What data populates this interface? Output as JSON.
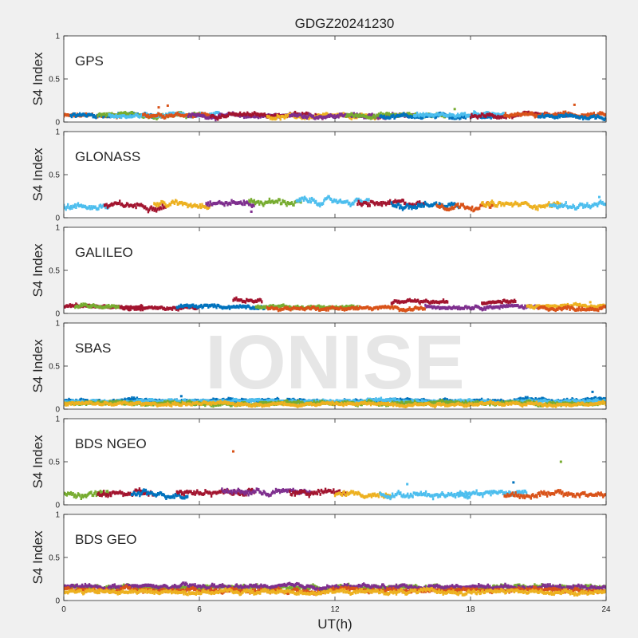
{
  "figure": {
    "title": "GDGZ20241230",
    "xlabel": "UT(h)",
    "watermark": "IONISE"
  },
  "chart_data": {
    "type": "scatter",
    "title": "GDGZ20241230",
    "xlabel": "UT(h)",
    "ylabel": "S4 Index",
    "xlim": [
      0,
      24
    ],
    "xticks": [
      0,
      6,
      12,
      18,
      24
    ],
    "ylim": [
      0,
      1
    ],
    "yticks": [
      0,
      0.5,
      1
    ],
    "ytick_labels": [
      "0",
      "0.5",
      "1"
    ],
    "grid": false,
    "colors": [
      "#0072BD",
      "#D95319",
      "#EDB120",
      "#7E2F8E",
      "#77AC30",
      "#4DBEEE",
      "#A2142F"
    ],
    "panels": [
      {
        "label": "GPS",
        "baseline": 0.07,
        "noise": 0.025,
        "segments": [
          {
            "x": [
              0,
              2.5
            ],
            "color": 1,
            "y": 0.07
          },
          {
            "x": [
              0.3,
              4.0
            ],
            "color": 0,
            "y": 0.08
          },
          {
            "x": [
              1.5,
              6.0
            ],
            "color": 4,
            "y": 0.08
          },
          {
            "x": [
              2.0,
              7.0
            ],
            "color": 5,
            "y": 0.07
          },
          {
            "x": [
              3.5,
              6.5
            ],
            "color": 1,
            "y": 0.09
          },
          {
            "x": [
              5.5,
              10.0
            ],
            "color": 3,
            "y": 0.07
          },
          {
            "x": [
              6.5,
              11.5
            ],
            "color": 6,
            "y": 0.08
          },
          {
            "x": [
              9.0,
              14.0
            ],
            "color": 2,
            "y": 0.06
          },
          {
            "x": [
              10.0,
              15.5
            ],
            "color": 3,
            "y": 0.07
          },
          {
            "x": [
              12.5,
              17.0
            ],
            "color": 4,
            "y": 0.08
          },
          {
            "x": [
              14.0,
              19.0
            ],
            "color": 0,
            "y": 0.07
          },
          {
            "x": [
              15.5,
              19.5
            ],
            "color": 5,
            "y": 0.08
          },
          {
            "x": [
              18.0,
              22.5
            ],
            "color": 6,
            "y": 0.07
          },
          {
            "x": [
              19.5,
              24.0
            ],
            "color": 1,
            "y": 0.08
          },
          {
            "x": [
              21.0,
              24.0
            ],
            "color": 0,
            "y": 0.06
          }
        ],
        "spikes": [
          {
            "x": 4.2,
            "y": 0.17,
            "color": 1
          },
          {
            "x": 4.6,
            "y": 0.19,
            "color": 1
          },
          {
            "x": 17.3,
            "y": 0.15,
            "color": 4
          },
          {
            "x": 22.6,
            "y": 0.2,
            "color": 1
          }
        ]
      },
      {
        "label": "GLONASS",
        "baseline": 0.13,
        "noise": 0.035,
        "segments": [
          {
            "x": [
              0,
              2.0
            ],
            "color": 5,
            "y": 0.13
          },
          {
            "x": [
              1.8,
              4.5
            ],
            "color": 6,
            "y": 0.14
          },
          {
            "x": [
              4.0,
              6.5
            ],
            "color": 2,
            "y": 0.16
          },
          {
            "x": [
              6.3,
              8.5
            ],
            "color": 3,
            "y": 0.17
          },
          {
            "x": [
              8.2,
              10.5
            ],
            "color": 4,
            "y": 0.18
          },
          {
            "x": [
              10.3,
              13.5
            ],
            "color": 5,
            "y": 0.19
          },
          {
            "x": [
              13.0,
              16.0
            ],
            "color": 6,
            "y": 0.16
          },
          {
            "x": [
              14.5,
              17.5
            ],
            "color": 0,
            "y": 0.15
          },
          {
            "x": [
              16.5,
              19.0
            ],
            "color": 1,
            "y": 0.14
          },
          {
            "x": [
              18.5,
              22.0
            ],
            "color": 2,
            "y": 0.15
          },
          {
            "x": [
              21.5,
              24.0
            ],
            "color": 5,
            "y": 0.14
          }
        ],
        "spikes": [
          {
            "x": 8.3,
            "y": 0.07,
            "color": 3
          },
          {
            "x": 23.7,
            "y": 0.24,
            "color": 5
          }
        ]
      },
      {
        "label": "GALILEO",
        "baseline": 0.07,
        "noise": 0.02,
        "segments": [
          {
            "x": [
              0,
              3.5
            ],
            "color": 6,
            "y": 0.08
          },
          {
            "x": [
              0.5,
              2.5
            ],
            "color": 4,
            "y": 0.09
          },
          {
            "x": [
              2.5,
              6.0
            ],
            "color": 6,
            "y": 0.06
          },
          {
            "x": [
              5.0,
              9.0
            ],
            "color": 0,
            "y": 0.08
          },
          {
            "x": [
              7.5,
              8.8
            ],
            "color": 6,
            "y": 0.15
          },
          {
            "x": [
              8.5,
              13.0
            ],
            "color": 4,
            "y": 0.07
          },
          {
            "x": [
              9.0,
              16.0
            ],
            "color": 1,
            "y": 0.06
          },
          {
            "x": [
              14.5,
              17.0
            ],
            "color": 6,
            "y": 0.13
          },
          {
            "x": [
              16.0,
              21.0
            ],
            "color": 3,
            "y": 0.08
          },
          {
            "x": [
              18.5,
              20.0
            ],
            "color": 6,
            "y": 0.13
          },
          {
            "x": [
              20.5,
              24.0
            ],
            "color": 2,
            "y": 0.08
          },
          {
            "x": [
              21.0,
              24.0
            ],
            "color": 1,
            "y": 0.06
          }
        ],
        "spikes": [
          {
            "x": 23.3,
            "y": 0.13,
            "color": 2
          }
        ]
      },
      {
        "label": "SBAS",
        "baseline": 0.09,
        "noise": 0.02,
        "segments": [
          {
            "x": [
              0,
              24.0
            ],
            "color": 0,
            "y": 0.1
          },
          {
            "x": [
              0,
              24.0
            ],
            "color": 5,
            "y": 0.09
          },
          {
            "x": [
              0,
              24.0
            ],
            "color": 4,
            "y": 0.07
          },
          {
            "x": [
              0,
              24.0
            ],
            "color": 2,
            "y": 0.06
          }
        ],
        "spikes": [
          {
            "x": 23.4,
            "y": 0.2,
            "color": 0
          },
          {
            "x": 5.2,
            "y": 0.15,
            "color": 0
          }
        ]
      },
      {
        "label": "BDS NGEO",
        "baseline": 0.12,
        "noise": 0.035,
        "segments": [
          {
            "x": [
              0,
              2.0
            ],
            "color": 4,
            "y": 0.12
          },
          {
            "x": [
              1.5,
              4.0
            ],
            "color": 6,
            "y": 0.13
          },
          {
            "x": [
              3.0,
              5.5
            ],
            "color": 0,
            "y": 0.12
          },
          {
            "x": [
              5.0,
              8.5
            ],
            "color": 6,
            "y": 0.15
          },
          {
            "x": [
              7.0,
              11.0
            ],
            "color": 3,
            "y": 0.15
          },
          {
            "x": [
              10.0,
              12.5
            ],
            "color": 6,
            "y": 0.14
          },
          {
            "x": [
              12.0,
              14.5
            ],
            "color": 2,
            "y": 0.12
          },
          {
            "x": [
              14.0,
              18.0
            ],
            "color": 5,
            "y": 0.12
          },
          {
            "x": [
              17.5,
              20.5
            ],
            "color": 5,
            "y": 0.14
          },
          {
            "x": [
              19.5,
              24.0
            ],
            "color": 1,
            "y": 0.12
          }
        ],
        "spikes": [
          {
            "x": 7.5,
            "y": 0.62,
            "color": 1
          },
          {
            "x": 22.0,
            "y": 0.5,
            "color": 4
          },
          {
            "x": 15.2,
            "y": 0.24,
            "color": 5
          },
          {
            "x": 19.9,
            "y": 0.26,
            "color": 0
          }
        ]
      },
      {
        "label": "BDS GEO",
        "baseline": 0.13,
        "noise": 0.025,
        "segments": [
          {
            "x": [
              0,
              24.0
            ],
            "color": 4,
            "y": 0.15
          },
          {
            "x": [
              0,
              24.0
            ],
            "color": 3,
            "y": 0.16
          },
          {
            "x": [
              0,
              24.0
            ],
            "color": 1,
            "y": 0.12
          },
          {
            "x": [
              0,
              24.0
            ],
            "color": 2,
            "y": 0.1
          }
        ],
        "spikes": []
      }
    ]
  }
}
